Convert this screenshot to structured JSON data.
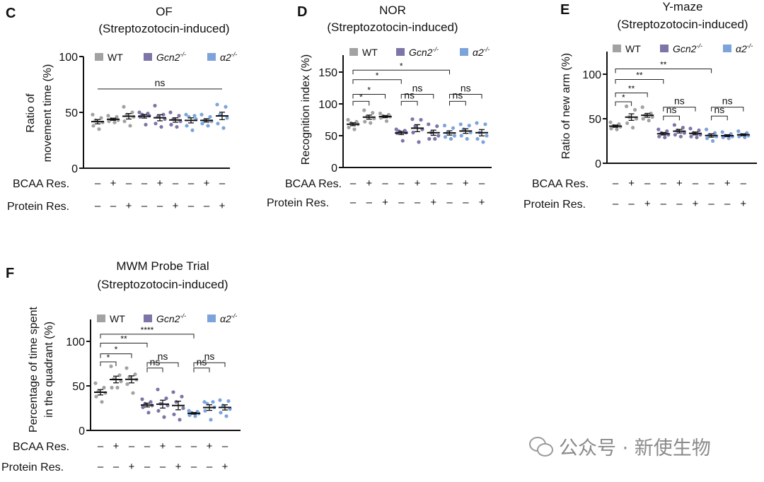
{
  "legend": {
    "wt": "WT",
    "gcn2": "Gcn2",
    "gcn2_sup": "-/-",
    "a2": "α2",
    "a2_sup": "-/-"
  },
  "colors": {
    "WT": "#a2a2a2",
    "Gcn2": "#7c75a8",
    "a2": "#7ca4da",
    "axis": "#111111"
  },
  "row_labels": {
    "bcaa": "BCAA Res.",
    "protein": "Protein Res."
  },
  "signs": {
    "bcaa": [
      "–",
      "+",
      "–",
      "–",
      "+",
      "–",
      "–",
      "+",
      "–"
    ],
    "protein": [
      "–",
      "–",
      "+",
      "–",
      "–",
      "+",
      "–",
      "–",
      "+"
    ]
  },
  "groups_genotype": [
    "WT",
    "WT",
    "WT",
    "Gcn2",
    "Gcn2",
    "Gcn2",
    "a2",
    "a2",
    "a2"
  ],
  "watermark": "公众号 · 新使生物",
  "chart_data": [
    {
      "panel": "C",
      "type": "scatter",
      "title": "OF",
      "subtitle": "(Streptozotocin-induced)",
      "ylabel": [
        "Ratio of",
        "movement time (%)"
      ],
      "ylim": [
        0,
        100
      ],
      "yticks": [
        0,
        50,
        100
      ],
      "legend_placement": "top",
      "grid": false,
      "groups": [
        [
          48,
          45,
          43,
          41,
          38,
          35
        ],
        [
          47,
          46,
          44,
          43,
          42,
          41
        ],
        [
          55,
          50,
          48,
          46,
          42,
          38
        ],
        [
          50,
          49,
          48,
          47,
          46,
          39
        ],
        [
          56,
          48,
          46,
          44,
          40,
          37
        ],
        [
          50,
          47,
          44,
          42,
          39,
          37
        ],
        [
          48,
          47,
          46,
          44,
          38,
          34
        ],
        [
          48,
          46,
          43,
          42,
          40,
          38
        ],
        [
          57,
          55,
          48,
          45,
          40,
          36
        ]
      ],
      "brackets": [
        {
          "from": 0,
          "to": 8,
          "level": 71,
          "label": "ns",
          "ticks": false
        }
      ]
    },
    {
      "panel": "D",
      "type": "scatter",
      "title": "NOR",
      "subtitle": "(Streptozotocin-induced)",
      "ylabel": [
        "Recognition index (%)"
      ],
      "ylim": [
        0,
        175
      ],
      "yticks": [
        0,
        50,
        100,
        150
      ],
      "legend_placement": "top",
      "grid": false,
      "groups": [
        [
          75,
          72,
          70,
          68,
          63,
          60
        ],
        [
          90,
          86,
          80,
          77,
          72,
          70
        ],
        [
          85,
          83,
          81,
          80,
          78,
          73
        ],
        [
          60,
          58,
          57,
          55,
          54,
          42
        ],
        [
          76,
          75,
          65,
          60,
          55,
          40
        ],
        [
          68,
          65,
          55,
          50,
          45,
          45
        ],
        [
          66,
          62,
          55,
          50,
          48,
          45
        ],
        [
          68,
          66,
          60,
          55,
          50,
          45
        ],
        [
          70,
          68,
          55,
          50,
          45,
          40
        ]
      ],
      "brackets": [
        {
          "from": 0,
          "to": 6,
          "level": 153,
          "label": "*"
        },
        {
          "from": 0,
          "to": 3,
          "level": 138,
          "label": "*"
        },
        {
          "from": 0,
          "to": 2,
          "level": 115,
          "label": "*"
        },
        {
          "from": 0,
          "to": 1,
          "level": 104,
          "label": "*"
        },
        {
          "from": 3,
          "to": 5,
          "level": 115,
          "label": "ns"
        },
        {
          "from": 3,
          "to": 4,
          "level": 104,
          "label": "ns"
        },
        {
          "from": 6,
          "to": 8,
          "level": 115,
          "label": "ns"
        },
        {
          "from": 6,
          "to": 7,
          "level": 104,
          "label": "ns"
        }
      ]
    },
    {
      "panel": "E",
      "type": "scatter",
      "title": "Y-maze",
      "subtitle": "(Streptozotocin-induced)",
      "ylabel": [
        "Ratio of new arm (%)"
      ],
      "ylim": [
        0,
        125
      ],
      "yticks": [
        0,
        50,
        100
      ],
      "legend_placement": "top",
      "grid": false,
      "groups": [
        [
          46,
          44,
          42,
          41,
          39,
          38
        ],
        [
          64,
          60,
          52,
          50,
          45,
          40
        ],
        [
          63,
          56,
          54,
          52,
          50,
          48
        ],
        [
          38,
          36,
          34,
          32,
          30,
          29
        ],
        [
          43,
          40,
          37,
          34,
          32,
          30
        ],
        [
          39,
          37,
          34,
          32,
          30,
          29
        ],
        [
          38,
          34,
          32,
          30,
          28,
          25
        ],
        [
          35,
          33,
          31,
          30,
          29,
          28
        ],
        [
          36,
          34,
          32,
          31,
          30,
          29
        ]
      ],
      "brackets": [
        {
          "from": 0,
          "to": 6,
          "level": 106,
          "label": "**"
        },
        {
          "from": 0,
          "to": 3,
          "level": 94,
          "label": "**"
        },
        {
          "from": 0,
          "to": 2,
          "level": 79,
          "label": "**"
        },
        {
          "from": 0,
          "to": 1,
          "level": 69,
          "label": "*"
        },
        {
          "from": 3,
          "to": 5,
          "level": 63,
          "label": "ns"
        },
        {
          "from": 3,
          "to": 4,
          "level": 53,
          "label": "ns"
        },
        {
          "from": 6,
          "to": 8,
          "level": 63,
          "label": "ns"
        },
        {
          "from": 6,
          "to": 7,
          "level": 53,
          "label": "ns"
        }
      ]
    },
    {
      "panel": "F",
      "type": "scatter",
      "title": "MWM Probe Trial",
      "subtitle": "(Streptozotocin-induced)",
      "ylabel": [
        "Percentage of time spent",
        "in the quadrant (%)"
      ],
      "ylim": [
        0,
        125
      ],
      "yticks": [
        0,
        50,
        100
      ],
      "legend_placement": "top",
      "grid": false,
      "groups": [
        [
          53,
          48,
          44,
          42,
          38,
          32
        ],
        [
          72,
          62,
          58,
          55,
          48,
          48
        ],
        [
          70,
          63,
          60,
          57,
          52,
          42
        ],
        [
          35,
          32,
          30,
          28,
          26,
          20
        ],
        [
          46,
          36,
          30,
          28,
          22,
          15
        ],
        [
          43,
          38,
          32,
          25,
          18,
          12
        ],
        [
          22,
          21,
          20,
          19,
          17,
          16
        ],
        [
          32,
          32,
          30,
          26,
          22,
          12
        ],
        [
          34,
          33,
          28,
          24,
          20,
          16
        ]
      ],
      "brackets": [
        {
          "from": 0,
          "to": 6,
          "level": 108,
          "label": "****"
        },
        {
          "from": 0,
          "to": 3,
          "level": 98,
          "label": "**"
        },
        {
          "from": 0,
          "to": 2,
          "level": 86,
          "label": "*"
        },
        {
          "from": 0,
          "to": 1,
          "level": 77,
          "label": "*"
        },
        {
          "from": 3,
          "to": 5,
          "level": 76,
          "label": "ns"
        },
        {
          "from": 3,
          "to": 4,
          "level": 70,
          "label": "ns"
        },
        {
          "from": 6,
          "to": 8,
          "level": 76,
          "label": "ns"
        },
        {
          "from": 6,
          "to": 7,
          "level": 70,
          "label": "ns"
        }
      ]
    }
  ]
}
